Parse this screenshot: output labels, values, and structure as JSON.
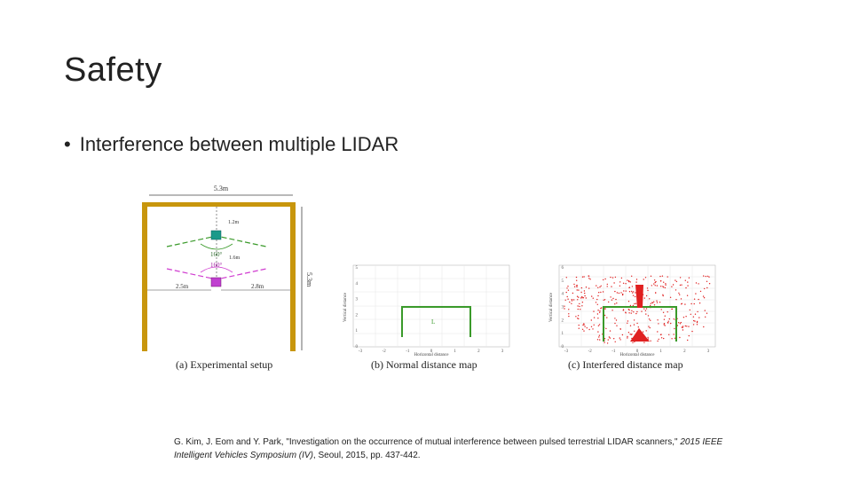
{
  "slide": {
    "title": "Safety",
    "bullet": "Interference between multiple LIDAR"
  },
  "figure": {
    "setup": {
      "caption": "(a) Experimental setup",
      "width_label": "5.3m",
      "height_label": "5.3m",
      "top_gap": "1.2m",
      "sensor_gap": "1.6m",
      "left_gap": "2.5m",
      "right_gap": "2.8m",
      "fov_upper": "160°",
      "fov_lower": "160°"
    },
    "normal": {
      "caption": "(b) Normal distance map",
      "xlabel": "Horizontal distance",
      "ylabel": "Vertical distance",
      "xticks": [
        "-3",
        "-2",
        "-1",
        "0",
        "1",
        "2",
        "3"
      ],
      "yticks": [
        "0",
        "1",
        "2",
        "3",
        "4",
        "5"
      ]
    },
    "interfered": {
      "caption": "(c) Interfered distance map",
      "xlabel": "Horizontal distance",
      "ylabel": "Vertical distance",
      "xticks": [
        "-3",
        "-2",
        "-1",
        "0",
        "1",
        "2",
        "3"
      ],
      "yticks": [
        "0",
        "1",
        "2",
        "3",
        "4",
        "5",
        "6"
      ]
    },
    "colors": {
      "wall": "#c8960c",
      "green": "#3a9a2a",
      "magenta": "#d03cd0",
      "red": "#e02020"
    }
  },
  "citation": {
    "prefix": "G. Kim, J. Eom and Y. Park, \"Investigation on the occurrence of mutual interference between pulsed terrestrial LIDAR scanners,\" ",
    "venue": "2015 IEEE Intelligent Vehicles Symposium (IV)",
    "suffix": ", Seoul, 2015, pp. 437-442."
  }
}
